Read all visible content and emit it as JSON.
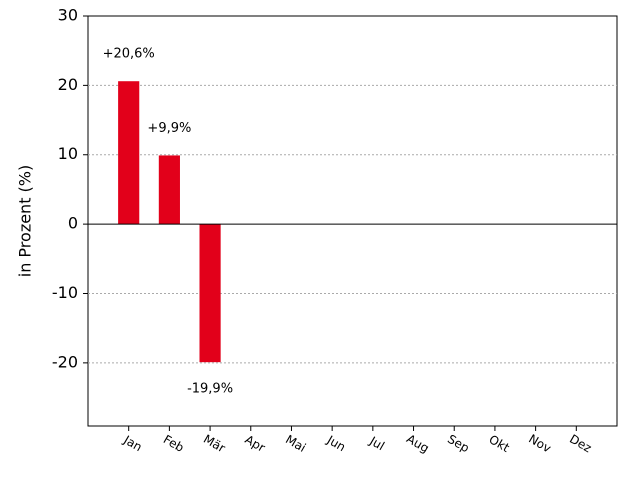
{
  "chart_data": {
    "type": "bar",
    "ylabel": "in Prozent (%)",
    "categories": [
      "Jan",
      "Feb",
      "Mär",
      "Apr",
      "Mai",
      "Jun",
      "Jul",
      "Aug",
      "Sep",
      "Okt",
      "Nov",
      "Dez"
    ],
    "values": [
      20.6,
      9.9,
      -19.9,
      0,
      0,
      0,
      0,
      0,
      0,
      0,
      0,
      0
    ],
    "value_labels": [
      "+20,6%",
      "+9,9%",
      "-19,9%",
      null,
      null,
      null,
      null,
      null,
      null,
      null,
      null,
      null
    ],
    "color": "#e2001a",
    "ylim": [
      -29.1,
      30
    ],
    "yticks": [
      -20,
      -10,
      0,
      10,
      20,
      30
    ],
    "grid": true
  }
}
